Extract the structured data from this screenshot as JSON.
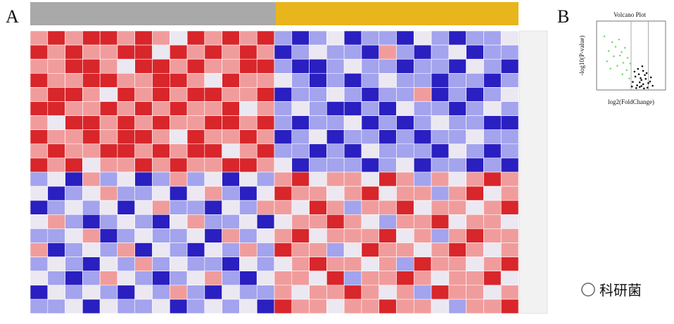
{
  "panel_a": {
    "label": "A",
    "heatmap": {
      "type": "heatmap",
      "values": [
        [
          1,
          2,
          1,
          2,
          2,
          1,
          2,
          1,
          0,
          2,
          1,
          2,
          1,
          2,
          -1,
          -2,
          -1,
          0,
          -2,
          -1,
          -1,
          -2,
          0,
          -1,
          -2,
          -1,
          -1,
          0
        ],
        [
          2,
          1,
          2,
          1,
          1,
          2,
          2,
          0,
          2,
          1,
          2,
          1,
          2,
          1,
          -2,
          -1,
          0,
          -1,
          -1,
          -2,
          1,
          -1,
          -2,
          -1,
          0,
          -2,
          -1,
          -1
        ],
        [
          1,
          1,
          2,
          2,
          1,
          0,
          2,
          2,
          1,
          2,
          1,
          1,
          2,
          2,
          -1,
          -2,
          -2,
          -1,
          0,
          -1,
          -1,
          -2,
          -1,
          -1,
          -2,
          0,
          -1,
          -2
        ],
        [
          2,
          1,
          1,
          2,
          2,
          1,
          1,
          2,
          2,
          1,
          0,
          2,
          1,
          1,
          0,
          -1,
          -2,
          -1,
          -2,
          -1,
          0,
          -1,
          -1,
          -2,
          -1,
          -1,
          -2,
          -1
        ],
        [
          1,
          2,
          2,
          1,
          0,
          2,
          1,
          2,
          1,
          2,
          2,
          1,
          1,
          2,
          -2,
          -1,
          -1,
          0,
          -1,
          -2,
          -1,
          -1,
          1,
          -2,
          -1,
          -2,
          -1,
          0
        ],
        [
          2,
          2,
          1,
          1,
          2,
          1,
          2,
          1,
          2,
          1,
          1,
          2,
          0,
          1,
          -1,
          0,
          -1,
          -2,
          -2,
          -1,
          -2,
          0,
          -1,
          -1,
          -2,
          -1,
          0,
          -1
        ],
        [
          1,
          0,
          2,
          2,
          1,
          2,
          1,
          2,
          1,
          1,
          2,
          2,
          1,
          2,
          -1,
          -2,
          -1,
          -1,
          0,
          -2,
          -1,
          -2,
          -1,
          0,
          -1,
          -1,
          -2,
          -2
        ],
        [
          2,
          1,
          1,
          2,
          1,
          2,
          2,
          1,
          0,
          2,
          1,
          1,
          2,
          1,
          -2,
          -1,
          0,
          -2,
          -1,
          -1,
          -2,
          -1,
          -2,
          -1,
          -1,
          0,
          -1,
          -1
        ],
        [
          1,
          2,
          1,
          1,
          2,
          2,
          1,
          2,
          1,
          2,
          2,
          0,
          1,
          2,
          -1,
          -1,
          -2,
          -1,
          -2,
          0,
          -1,
          -1,
          -1,
          -2,
          0,
          -1,
          -2,
          -1
        ],
        [
          2,
          1,
          2,
          0,
          1,
          1,
          2,
          1,
          2,
          1,
          1,
          2,
          2,
          1,
          0,
          -2,
          -1,
          -1,
          -1,
          -2,
          -1,
          0,
          -2,
          -1,
          -1,
          -2,
          -1,
          -2
        ],
        [
          -1,
          0,
          -2,
          1,
          -1,
          0,
          -2,
          -1,
          1,
          -1,
          0,
          -2,
          0,
          -1,
          1,
          2,
          0,
          1,
          1,
          0,
          2,
          1,
          -1,
          1,
          0,
          1,
          2,
          1
        ],
        [
          0,
          -2,
          -1,
          0,
          1,
          -1,
          -1,
          0,
          -2,
          0,
          1,
          -1,
          -2,
          0,
          2,
          1,
          1,
          0,
          1,
          2,
          0,
          1,
          1,
          -1,
          1,
          2,
          0,
          1
        ],
        [
          -2,
          -1,
          0,
          -1,
          0,
          -2,
          0,
          1,
          -1,
          -1,
          -2,
          0,
          -1,
          1,
          1,
          0,
          2,
          1,
          -1,
          1,
          1,
          2,
          0,
          1,
          1,
          0,
          1,
          2
        ],
        [
          0,
          1,
          -1,
          -2,
          -1,
          0,
          -1,
          -2,
          0,
          1,
          -1,
          -1,
          0,
          -2,
          0,
          1,
          1,
          2,
          1,
          0,
          -1,
          1,
          1,
          2,
          0,
          1,
          1,
          0
        ],
        [
          -1,
          -1,
          0,
          1,
          -2,
          -1,
          0,
          -1,
          -1,
          0,
          -2,
          1,
          -1,
          0,
          1,
          2,
          0,
          1,
          1,
          1,
          2,
          0,
          1,
          -1,
          1,
          2,
          1,
          1
        ],
        [
          1,
          -2,
          -1,
          0,
          -1,
          1,
          -2,
          0,
          -1,
          -2,
          0,
          -1,
          1,
          -1,
          2,
          1,
          1,
          -1,
          0,
          2,
          1,
          1,
          0,
          1,
          2,
          1,
          0,
          1
        ],
        [
          -1,
          0,
          -1,
          -2,
          0,
          -1,
          1,
          -1,
          0,
          -1,
          -1,
          -2,
          0,
          -1,
          0,
          1,
          2,
          1,
          1,
          0,
          1,
          -1,
          2,
          1,
          1,
          0,
          1,
          2
        ],
        [
          0,
          -1,
          -2,
          -1,
          1,
          0,
          -1,
          -2,
          -1,
          0,
          1,
          -1,
          -2,
          0,
          1,
          1,
          0,
          2,
          -1,
          1,
          1,
          2,
          1,
          0,
          1,
          1,
          2,
          0
        ],
        [
          -2,
          0,
          -1,
          0,
          -1,
          -2,
          0,
          -1,
          1,
          -1,
          -2,
          0,
          -1,
          -1,
          1,
          0,
          1,
          1,
          2,
          1,
          0,
          1,
          -1,
          2,
          1,
          1,
          0,
          1
        ],
        [
          -1,
          -1,
          0,
          -2,
          0,
          -1,
          -1,
          0,
          -2,
          -1,
          0,
          -1,
          0,
          -2,
          2,
          1,
          1,
          0,
          1,
          1,
          2,
          1,
          1,
          0,
          -1,
          1,
          1,
          2
        ]
      ],
      "limits": [
        -2,
        2
      ],
      "colors": [
        "#2a1fc0",
        "#a3a3ee",
        "#ece8f2",
        "#f19c9c",
        "#d8262b"
      ]
    }
  },
  "panel_b": {
    "label": "B",
    "chart_data": {
      "type": "scatter",
      "title": "Volcano Plot",
      "x_label": "log2(FoldChange)",
      "y_label": "-log10(P-value)",
      "xlim": [
        -5,
        3
      ],
      "ylim": [
        0,
        18
      ],
      "vlines": [
        -1,
        1
      ],
      "groups": [
        {
          "color": "#111111",
          "x": [
            -0.8,
            -0.5,
            -0.3,
            0,
            0.2,
            0.4,
            0.6,
            0.9,
            1.2,
            1.5,
            -0.6,
            -0.2,
            0.1,
            0.3,
            0.5,
            0.8,
            1.0,
            -0.9,
            0.7,
            0.2,
            -0.4,
            1.3,
            0.0,
            0.4,
            -0.1
          ],
          "y": [
            2.1,
            3.5,
            1.2,
            0.8,
            2.6,
            1.5,
            3.9,
            0.6,
            2.2,
            1.1,
            4.8,
            5.5,
            3.1,
            6.2,
            0.4,
            4.4,
            1.8,
            0.9,
            2.9,
            1.0,
            0.5,
            3.3,
            2.0,
            5.0,
            4.1
          ]
        },
        {
          "color": "#7dd97d",
          "x": [
            -1.2,
            -1.5,
            -1.9,
            -2.3,
            -2.8,
            -3.2,
            -3.6,
            -4.1,
            -1.4,
            -2.0,
            -2.6,
            -3.0,
            -1.7,
            -2.4,
            -3.4,
            -1.1,
            -2.1,
            -3.8
          ],
          "y": [
            3.0,
            5.2,
            7.1,
            9.0,
            11.3,
            12.5,
            10.2,
            14.0,
            8.4,
            4.1,
            6.3,
            8.8,
            11.0,
            13.2,
            5.6,
            6.9,
            9.9,
            7.5
          ]
        }
      ]
    }
  },
  "watermark": "科研菌"
}
